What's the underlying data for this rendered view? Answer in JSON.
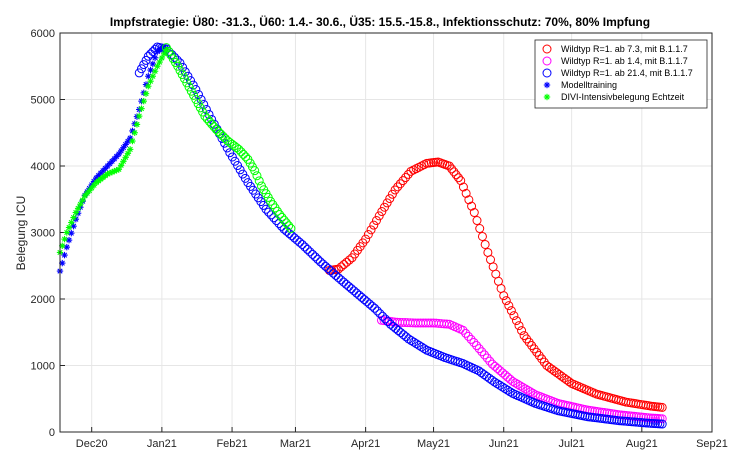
{
  "chart_data": {
    "type": "scatter",
    "title": "Impfstrategie: Ü80: -31.3., Ü60: 1.4.- 30.6., Ü35: 15.5.-15.8., Infektionsschutz: 70%, 80% Impfung",
    "xlabel": "",
    "ylabel": "Belegung ICU",
    "xlim": [
      "2020-11-17",
      "2021-09-01"
    ],
    "ylim": [
      0,
      6000
    ],
    "x_ticks": [
      {
        "date": "2020-12-01",
        "label": "Dec20"
      },
      {
        "date": "2021-01-01",
        "label": "Jan21"
      },
      {
        "date": "2021-02-01",
        "label": "Feb21"
      },
      {
        "date": "2021-03-01",
        "label": "Mar21"
      },
      {
        "date": "2021-04-01",
        "label": "Apr21"
      },
      {
        "date": "2021-05-01",
        "label": "May21"
      },
      {
        "date": "2021-06-01",
        "label": "Jun21"
      },
      {
        "date": "2021-07-01",
        "label": "Jul21"
      },
      {
        "date": "2021-08-01",
        "label": "Aug21"
      },
      {
        "date": "2021-09-01",
        "label": "Sep21"
      }
    ],
    "y_ticks": [
      0,
      1000,
      2000,
      3000,
      4000,
      5000,
      6000
    ],
    "grid": true,
    "legend_position": "top-right",
    "series": [
      {
        "name": "Wildtyp R=1. ab 7.3, mit B.1.1.7",
        "color": "#ff0000",
        "marker": "circle",
        "points": [
          [
            "2021-03-16",
            2430
          ],
          [
            "2021-03-20",
            2450
          ],
          [
            "2021-03-26",
            2620
          ],
          [
            "2021-04-01",
            2900
          ],
          [
            "2021-04-07",
            3250
          ],
          [
            "2021-04-14",
            3640
          ],
          [
            "2021-04-21",
            3920
          ],
          [
            "2021-04-28",
            4040
          ],
          [
            "2021-05-03",
            4060
          ],
          [
            "2021-05-08",
            4000
          ],
          [
            "2021-05-13",
            3780
          ],
          [
            "2021-05-19",
            3300
          ],
          [
            "2021-05-25",
            2700
          ],
          [
            "2021-06-01",
            2050
          ],
          [
            "2021-06-10",
            1450
          ],
          [
            "2021-06-20",
            1000
          ],
          [
            "2021-07-01",
            730
          ],
          [
            "2021-07-12",
            570
          ],
          [
            "2021-07-25",
            450
          ],
          [
            "2021-08-05",
            390
          ],
          [
            "2021-08-10",
            370
          ]
        ]
      },
      {
        "name": "Wildtyp R=1. ab 1.4, mit B.1.1.7",
        "color": "#ff00ff",
        "marker": "circle",
        "points": [
          [
            "2021-04-08",
            1680
          ],
          [
            "2021-04-15",
            1650
          ],
          [
            "2021-04-23",
            1640
          ],
          [
            "2021-05-01",
            1640
          ],
          [
            "2021-05-08",
            1620
          ],
          [
            "2021-05-14",
            1530
          ],
          [
            "2021-05-20",
            1300
          ],
          [
            "2021-05-27",
            1020
          ],
          [
            "2021-06-05",
            760
          ],
          [
            "2021-06-15",
            560
          ],
          [
            "2021-06-25",
            430
          ],
          [
            "2021-07-08",
            330
          ],
          [
            "2021-07-22",
            260
          ],
          [
            "2021-08-05",
            210
          ],
          [
            "2021-08-10",
            200
          ]
        ]
      },
      {
        "name": "Wildtyp R=1. ab 21.4, mit B.1.1.7",
        "color": "#0000ff",
        "marker": "circle",
        "points": [
          [
            "2020-12-22",
            5400
          ],
          [
            "2020-12-26",
            5650
          ],
          [
            "2020-12-30",
            5790
          ],
          [
            "2021-01-03",
            5760
          ],
          [
            "2021-01-09",
            5550
          ],
          [
            "2021-01-16",
            5150
          ],
          [
            "2021-01-23",
            4700
          ],
          [
            "2021-01-31",
            4200
          ],
          [
            "2021-02-08",
            3750
          ],
          [
            "2021-02-16",
            3350
          ],
          [
            "2021-02-24",
            3050
          ],
          [
            "2021-03-04",
            2820
          ],
          [
            "2021-03-12",
            2560
          ],
          [
            "2021-03-20",
            2320
          ],
          [
            "2021-03-28",
            2090
          ],
          [
            "2021-04-05",
            1860
          ],
          [
            "2021-04-12",
            1620
          ],
          [
            "2021-04-20",
            1400
          ],
          [
            "2021-04-28",
            1230
          ],
          [
            "2021-05-06",
            1120
          ],
          [
            "2021-05-14",
            1030
          ],
          [
            "2021-05-21",
            920
          ],
          [
            "2021-05-28",
            750
          ],
          [
            "2021-06-05",
            580
          ],
          [
            "2021-06-15",
            430
          ],
          [
            "2021-06-25",
            320
          ],
          [
            "2021-07-08",
            230
          ],
          [
            "2021-07-22",
            170
          ],
          [
            "2021-08-05",
            130
          ],
          [
            "2021-08-10",
            120
          ]
        ]
      },
      {
        "name": "Modelltraining",
        "color": "#0000ff",
        "marker": "asterisk",
        "points": [
          [
            "2020-11-17",
            2420
          ],
          [
            "2020-11-20",
            2780
          ],
          [
            "2020-11-24",
            3200
          ],
          [
            "2020-11-28",
            3560
          ],
          [
            "2020-12-03",
            3820
          ],
          [
            "2020-12-08",
            4000
          ],
          [
            "2020-12-13",
            4180
          ],
          [
            "2020-12-18",
            4420
          ],
          [
            "2020-12-22",
            4850
          ],
          [
            "2020-12-26",
            5350
          ],
          [
            "2020-12-30",
            5720
          ],
          [
            "2021-01-02",
            5790
          ]
        ]
      },
      {
        "name": "DIVI-Intensivbelegung Echtzeit",
        "color": "#00ff00",
        "marker": "asterisk",
        "points": [
          [
            "2020-11-17",
            2700
          ],
          [
            "2020-11-20",
            3000
          ],
          [
            "2020-11-24",
            3300
          ],
          [
            "2020-11-28",
            3550
          ],
          [
            "2020-12-03",
            3750
          ],
          [
            "2020-12-08",
            3880
          ],
          [
            "2020-12-13",
            3950
          ],
          [
            "2020-12-18",
            4250
          ],
          [
            "2020-12-22",
            4750
          ],
          [
            "2020-12-26",
            5200
          ],
          [
            "2020-12-30",
            5500
          ],
          [
            "2021-01-03",
            5750
          ]
        ]
      },
      {
        "name": "",
        "color": "#00ff00",
        "marker": "circle",
        "points": [
          [
            "2021-01-03",
            5780
          ],
          [
            "2021-01-08",
            5500
          ],
          [
            "2021-01-12",
            5250
          ],
          [
            "2021-01-16",
            5000
          ],
          [
            "2021-01-20",
            4750
          ],
          [
            "2021-01-25",
            4550
          ],
          [
            "2021-01-30",
            4380
          ],
          [
            "2021-02-04",
            4250
          ],
          [
            "2021-02-08",
            4100
          ],
          [
            "2021-02-11",
            3930
          ],
          [
            "2021-02-14",
            3700
          ],
          [
            "2021-02-18",
            3470
          ],
          [
            "2021-02-22",
            3270
          ],
          [
            "2021-02-27",
            3060
          ]
        ]
      }
    ]
  }
}
